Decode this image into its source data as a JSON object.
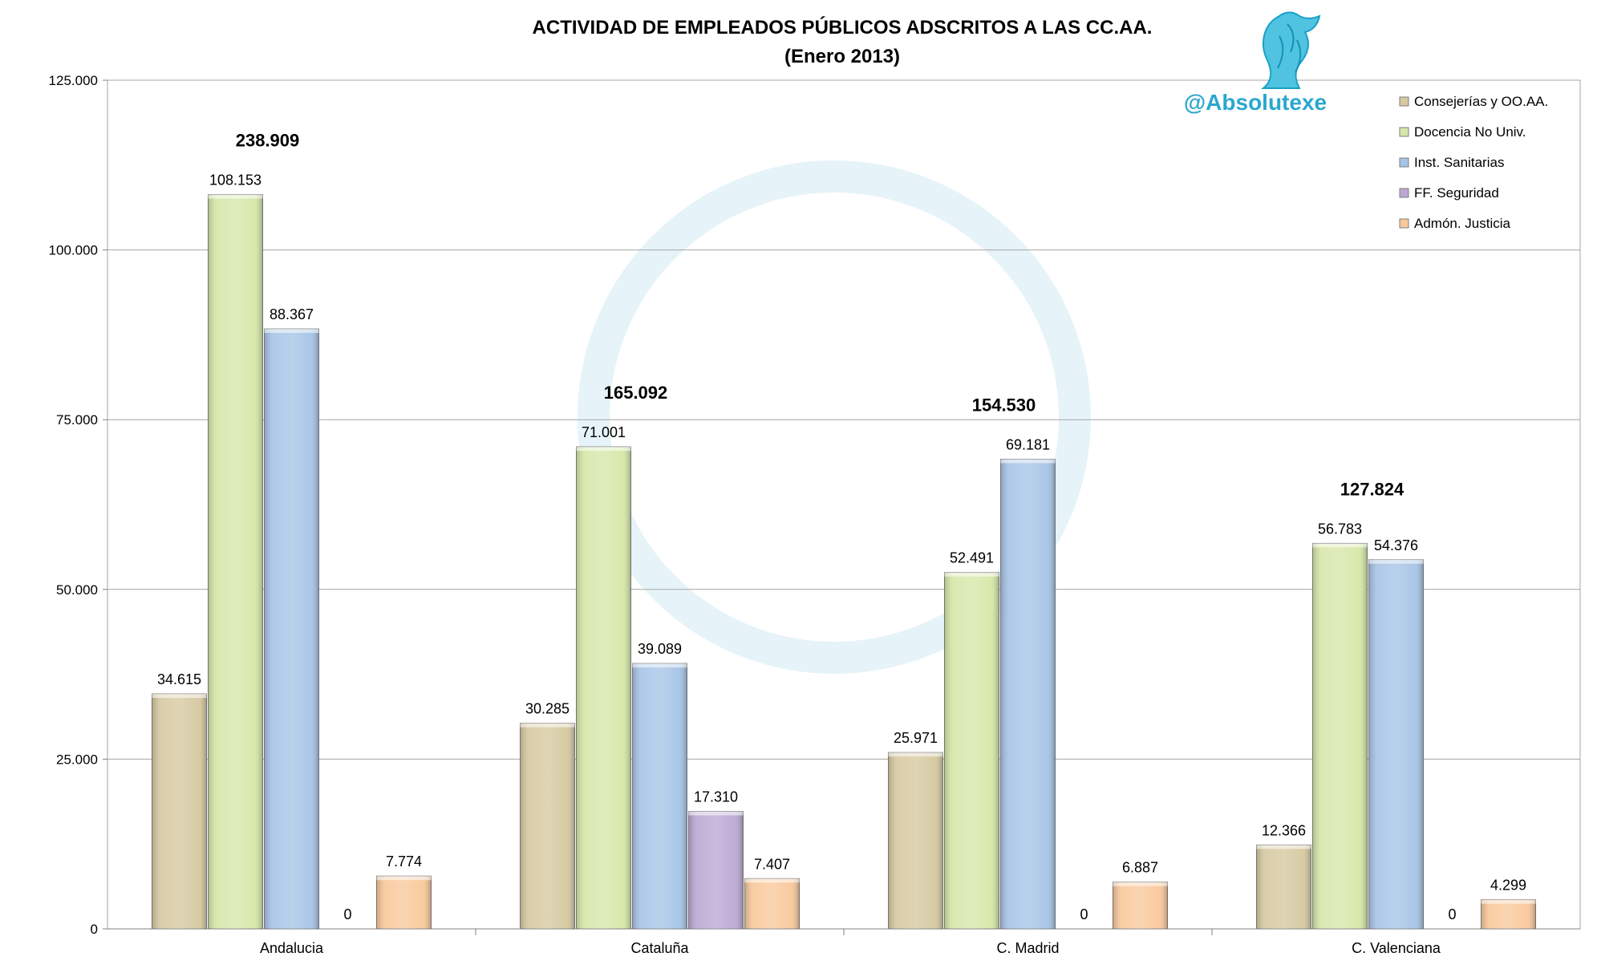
{
  "chart_data": {
    "type": "bar",
    "title": "ACTIVIDAD DE EMPLEADOS PÚBLICOS ADSCRITOS A LAS CC.AA.",
    "subtitle": "(Enero 2013)",
    "watermark_handle": "@Absolutexe",
    "categories": [
      "Andalucia",
      "Cataluña",
      "C. Madrid",
      "C. Valenciana"
    ],
    "series": [
      {
        "name": "Consejerías y OO.AA.",
        "color": "#d6c9a0",
        "values": [
          34615,
          30285,
          25971,
          12366
        ],
        "labels": [
          "34.615",
          "30.285",
          "25.971",
          "12.366"
        ]
      },
      {
        "name": "Docencia No Univ.",
        "color": "#d6e7a8",
        "values": [
          108153,
          71001,
          52491,
          56783
        ],
        "labels": [
          "108.153",
          "71.001",
          "52.491",
          "56.783"
        ]
      },
      {
        "name": "Inst. Sanitarias",
        "color": "#a6c4e6",
        "values": [
          88367,
          39089,
          69181,
          54376
        ],
        "labels": [
          "88.367",
          "39.089",
          "69.181",
          "54.376"
        ]
      },
      {
        "name": "FF. Seguridad",
        "color": "#bba8d2",
        "values": [
          0,
          17310,
          0,
          0
        ],
        "labels": [
          "0",
          "17.310",
          "0",
          "0"
        ]
      },
      {
        "name": "Admón. Justicia",
        "color": "#f9c89b",
        "values": [
          7774,
          7407,
          6887,
          4299
        ],
        "labels": [
          "7.774",
          "7.407",
          "6.887",
          "4.299"
        ]
      }
    ],
    "totals": [
      "238.909",
      "165.092",
      "154.530",
      "127.824"
    ],
    "ylim": [
      0,
      125000
    ],
    "yticks": [
      0,
      25000,
      50000,
      75000,
      100000,
      125000
    ],
    "ytick_labels": [
      "0",
      "25.000",
      "50.000",
      "75.000",
      "100.000",
      "125.000"
    ],
    "grid": true,
    "legend_position": "top-right"
  }
}
